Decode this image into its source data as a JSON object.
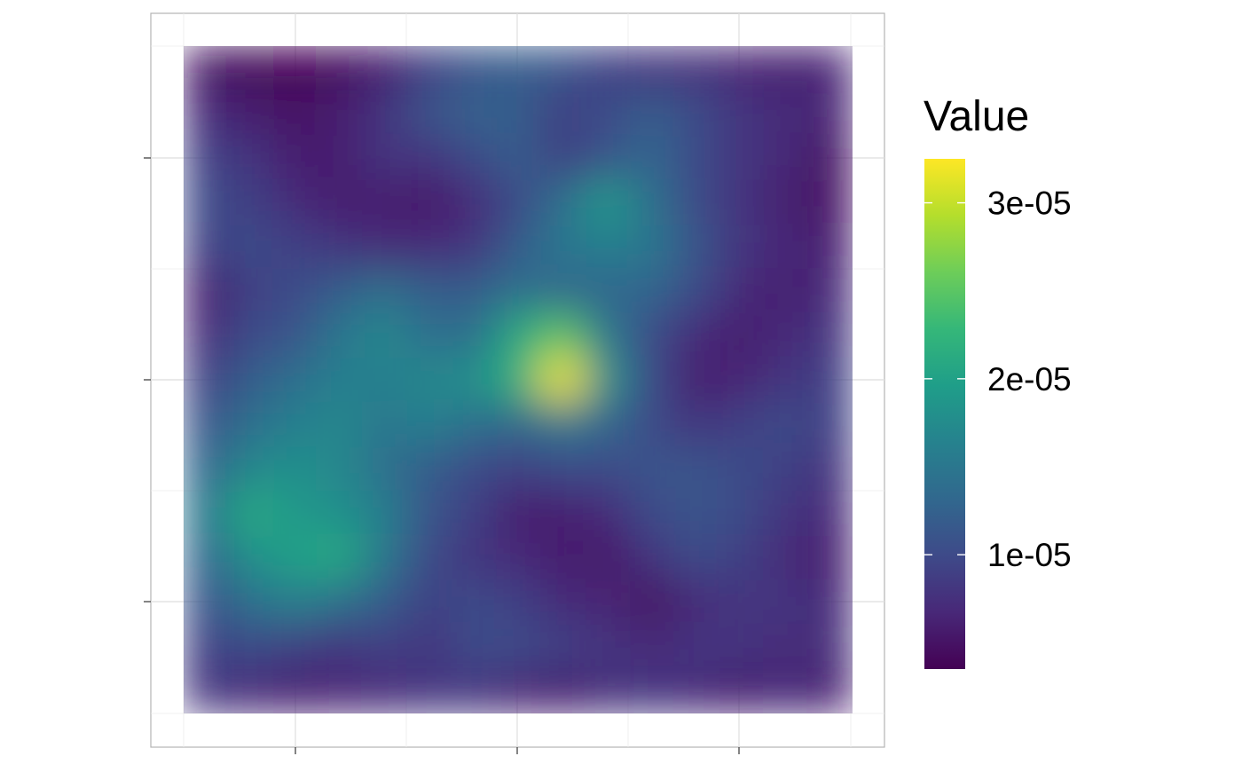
{
  "chart_data": {
    "type": "heatmap",
    "title": "",
    "xlabel": "",
    "ylabel": "",
    "x_tick_labels": [],
    "y_tick_labels": [],
    "grid": true,
    "legend_position": "right",
    "legend": {
      "title": "Value",
      "min": 3.5e-06,
      "max": 3.25e-05,
      "breaks": [
        1e-05,
        2e-05,
        3e-05
      ],
      "break_labels": [
        "1e-05",
        "2e-05",
        "3e-05"
      ],
      "palette": "viridis",
      "colors": [
        "#440154",
        "#482878",
        "#3E4A89",
        "#31688E",
        "#26828E",
        "#1F9E89",
        "#35B779",
        "#6DCD59",
        "#B4DE2C",
        "#FDE725"
      ]
    },
    "grid_rows": 15,
    "grid_cols": 15,
    "values": [
      [
        5.0,
        4.0,
        3.5,
        4.5,
        6.0,
        9.0,
        11.0,
        12.0,
        11.0,
        9.0,
        8.0,
        7.5,
        6.5,
        6.0,
        6.5
      ],
      [
        7.0,
        6.0,
        5.0,
        6.0,
        8.0,
        11.0,
        12.5,
        12.0,
        9.0,
        10.0,
        12.0,
        10.0,
        8.0,
        7.0,
        6.5
      ],
      [
        9.0,
        8.0,
        6.0,
        6.0,
        8.0,
        8.0,
        10.0,
        12.0,
        9.0,
        11.0,
        13.0,
        10.0,
        8.0,
        7.0,
        5.0
      ],
      [
        10.0,
        9.0,
        7.0,
        6.0,
        6.0,
        5.5,
        7.0,
        10.0,
        14.0,
        19.0,
        14.0,
        10.0,
        8.0,
        6.0,
        5.0
      ],
      [
        9.0,
        10.0,
        9.0,
        8.0,
        7.0,
        7.0,
        8.0,
        12.0,
        15.0,
        16.0,
        15.0,
        11.0,
        8.0,
        7.0,
        6.0
      ],
      [
        6.0,
        9.0,
        10.0,
        12.0,
        14.0,
        12.0,
        12.0,
        14.0,
        13.0,
        13.0,
        13.0,
        10.0,
        7.0,
        6.0,
        7.0
      ],
      [
        7.0,
        10.0,
        11.0,
        15.0,
        17.0,
        14.0,
        14.0,
        21.0,
        25.0,
        15.0,
        10.0,
        7.0,
        6.0,
        7.0,
        8.0
      ],
      [
        9.0,
        12.0,
        14.0,
        16.0,
        16.0,
        17.0,
        18.0,
        22.0,
        32.0,
        18.0,
        10.0,
        6.0,
        6.5,
        8.0,
        9.0
      ],
      [
        11.0,
        14.0,
        16.0,
        17.0,
        15.0,
        16.0,
        14.0,
        13.0,
        15.0,
        13.0,
        10.0,
        8.0,
        9.0,
        10.0,
        9.0
      ],
      [
        13.0,
        17.0,
        18.0,
        17.0,
        14.0,
        12.0,
        10.0,
        9.0,
        10.0,
        10.0,
        11.0,
        11.0,
        10.0,
        9.0,
        8.0
      ],
      [
        15.0,
        21.0,
        19.0,
        18.0,
        16.0,
        11.0,
        9.0,
        6.0,
        6.0,
        7.0,
        10.0,
        11.0,
        10.0,
        8.0,
        7.0
      ],
      [
        13.0,
        18.0,
        20.0,
        21.0,
        15.0,
        10.0,
        8.0,
        7.0,
        6.0,
        5.5,
        8.0,
        10.0,
        9.0,
        7.0,
        6.0
      ],
      [
        11.0,
        14.0,
        16.0,
        14.0,
        12.0,
        9.0,
        10.0,
        9.0,
        7.0,
        6.5,
        5.0,
        7.0,
        8.0,
        8.0,
        7.0
      ],
      [
        9.0,
        10.0,
        9.0,
        8.0,
        9.0,
        8.0,
        10.0,
        10.0,
        9.0,
        8.0,
        7.0,
        8.0,
        8.0,
        7.0,
        7.5
      ],
      [
        8.0,
        7.0,
        6.0,
        6.5,
        7.0,
        8.0,
        8.0,
        6.5,
        6.0,
        7.5,
        8.0,
        7.0,
        6.0,
        7.0,
        6.0
      ]
    ],
    "value_scale": 1e-06
  }
}
